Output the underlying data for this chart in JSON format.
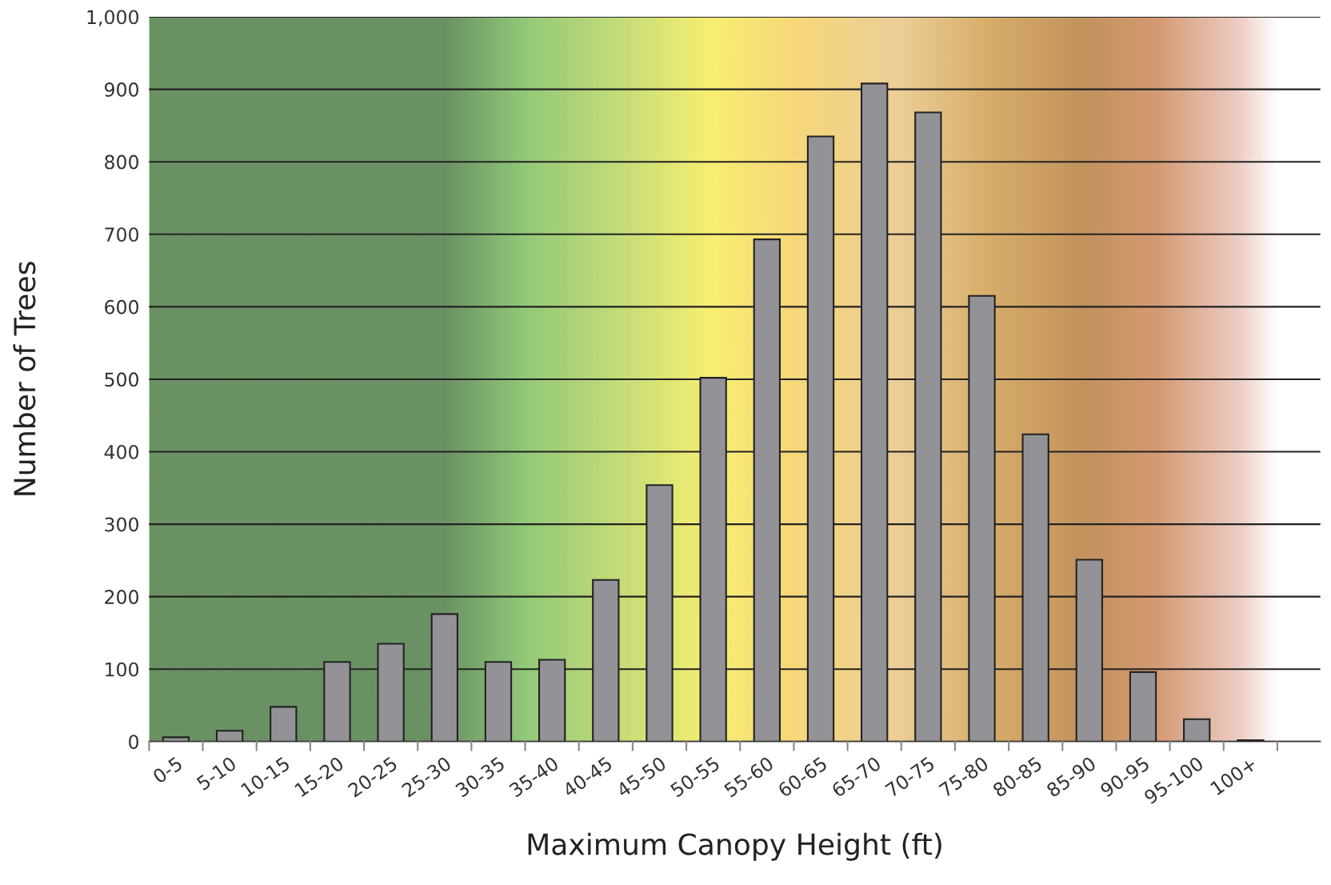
{
  "chart_data": {
    "type": "bar",
    "xlabel": "Maximum Canopy Height (ft)",
    "ylabel": "Number of Trees",
    "categories": [
      "0-5",
      "5-10",
      "10-15",
      "15-20",
      "20-25",
      "25-30",
      "30-35",
      "35-40",
      "40-45",
      "45-50",
      "50-55",
      "55-60",
      "60-65",
      "65-70",
      "70-75",
      "75-80",
      "80-85",
      "85-90",
      "90-95",
      "95-100",
      "100+"
    ],
    "values": [
      6,
      15,
      48,
      110,
      135,
      176,
      110,
      113,
      223,
      354,
      502,
      693,
      835,
      908,
      868,
      615,
      424,
      251,
      96,
      31,
      2
    ],
    "color": "#939397",
    "ylim": [
      0,
      1000
    ],
    "yticks": [
      0,
      100,
      200,
      300,
      400,
      500,
      600,
      700,
      800,
      900,
      {
        "value": 1000,
        "label": "1,000"
      }
    ],
    "grid": "y"
  }
}
